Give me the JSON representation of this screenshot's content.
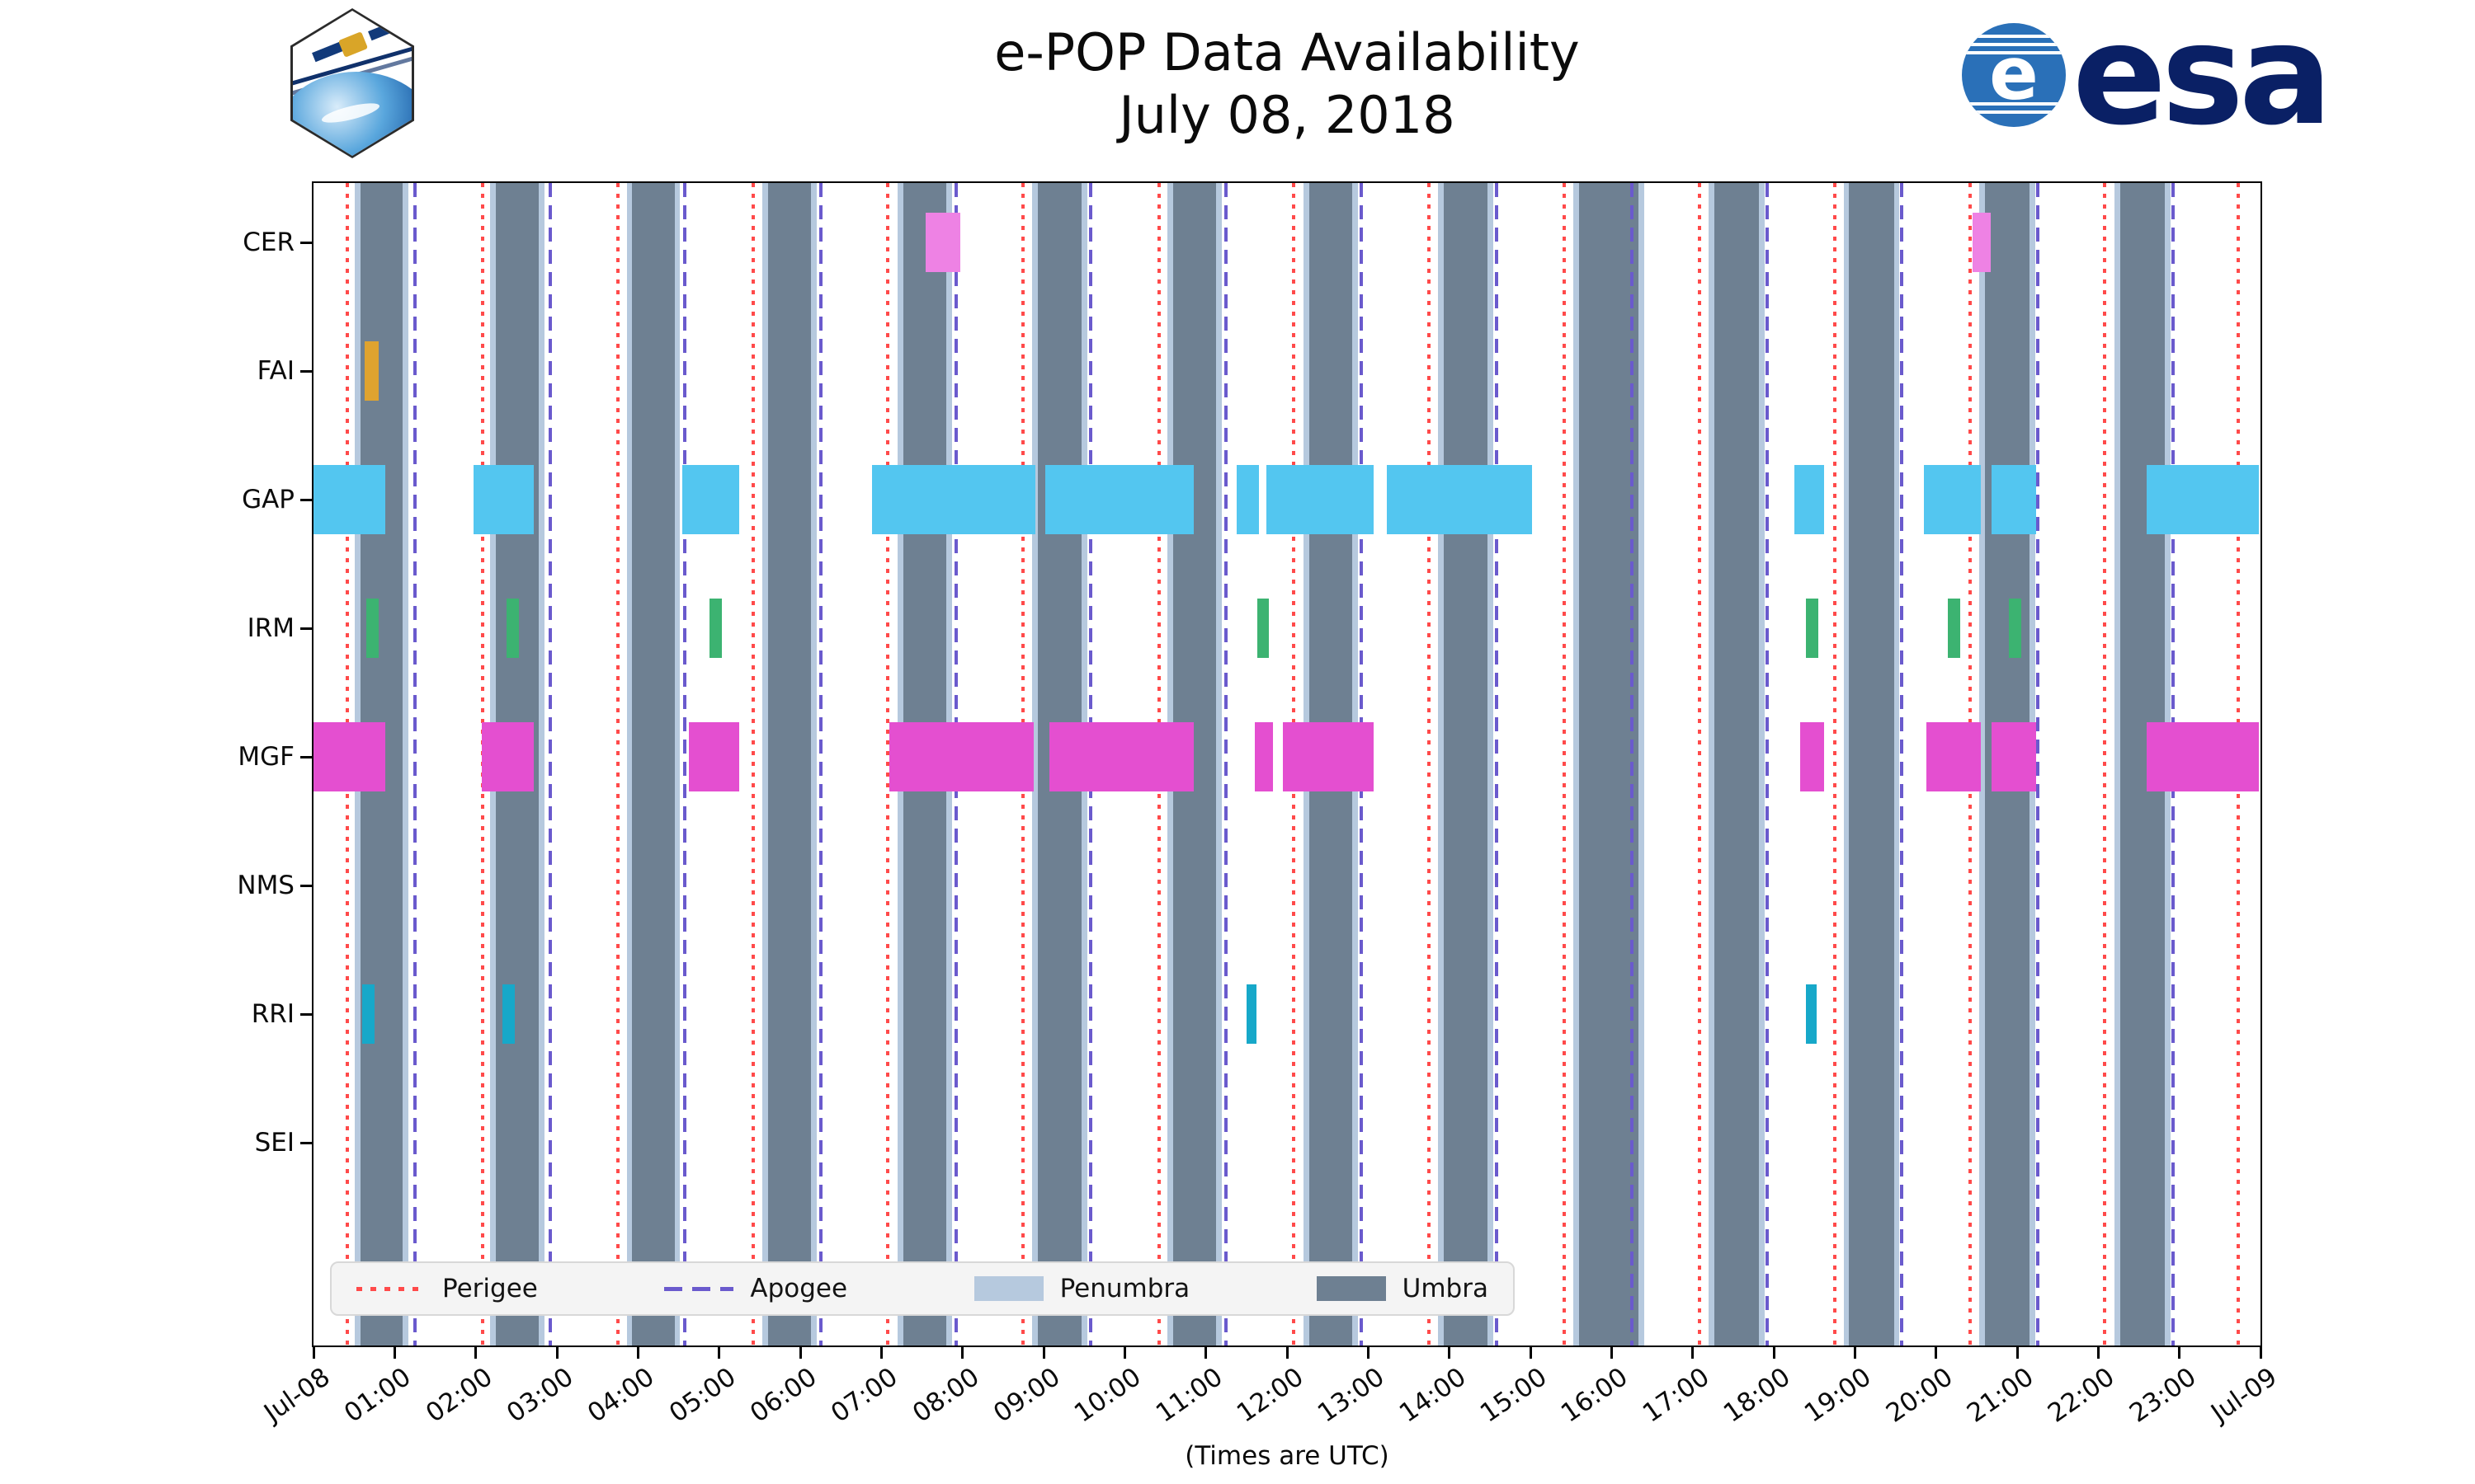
{
  "header": {
    "title_line1": "e-POP Data Availability",
    "title_line2": "July 08, 2018",
    "cassiope_label": "CASSIOPE",
    "esa_label": "esa"
  },
  "axis": {
    "xlabel": "(Times are UTC)",
    "x_tick_labels": [
      "Jul-08",
      "01:00",
      "02:00",
      "03:00",
      "04:00",
      "05:00",
      "06:00",
      "07:00",
      "08:00",
      "09:00",
      "10:00",
      "11:00",
      "12:00",
      "13:00",
      "14:00",
      "15:00",
      "16:00",
      "17:00",
      "18:00",
      "19:00",
      "20:00",
      "21:00",
      "22:00",
      "23:00",
      "Jul-09"
    ],
    "y_labels": [
      "CER",
      "FAI",
      "GAP",
      "IRM",
      "MGF",
      "NMS",
      "RRI",
      "SEI"
    ]
  },
  "legend": {
    "items": [
      {
        "label": "Perigee",
        "style": "dotted",
        "color": "#ff4a4a"
      },
      {
        "label": "Apogee",
        "style": "dashed",
        "color": "#6a5acd"
      },
      {
        "label": "Penumbra",
        "style": "patch",
        "color": "#b6c9de"
      },
      {
        "label": "Umbra",
        "style": "patch",
        "color": "#6e8092"
      }
    ]
  },
  "chart_data": {
    "type": "gantt-timeline",
    "title": "e-POP Data Availability July 08, 2018",
    "x_range_hours": [
      0,
      24
    ],
    "x_tick_interval_hours": 1,
    "instruments": [
      "CER",
      "FAI",
      "GAP",
      "IRM",
      "MGF",
      "NMS",
      "RRI",
      "SEI"
    ],
    "colors": {
      "CER": "#ee82e4",
      "FAI": "#dfa32f",
      "GAP": "#53c6f0",
      "IRM": "#3cb371",
      "MGF": "#e44fd0",
      "NMS": "#888888",
      "RRI": "#17a8c9",
      "SEI": "#888888",
      "umbra": "#6e8092",
      "penumbra": "#b6c9de",
      "perigee": "#ff4a4a",
      "apogee": "#6a5acd"
    },
    "availability_hours": {
      "CER": [
        [
          7.55,
          7.97
        ],
        [
          20.45,
          20.67
        ]
      ],
      "FAI": [
        [
          0.63,
          0.8
        ]
      ],
      "GAP": [
        [
          0.0,
          0.88
        ],
        [
          1.97,
          2.72
        ],
        [
          4.55,
          5.25
        ],
        [
          6.88,
          8.9
        ],
        [
          9.02,
          10.85
        ],
        [
          11.38,
          11.65
        ],
        [
          11.75,
          13.07
        ],
        [
          13.23,
          15.02
        ],
        [
          18.25,
          18.62
        ],
        [
          19.85,
          20.55
        ],
        [
          20.68,
          21.23
        ],
        [
          22.6,
          23.98
        ]
      ],
      "IRM": [
        [
          0.65,
          0.8
        ],
        [
          2.38,
          2.53
        ],
        [
          4.88,
          5.03
        ],
        [
          11.63,
          11.78
        ],
        [
          18.4,
          18.55
        ],
        [
          20.15,
          20.3
        ],
        [
          20.9,
          21.05
        ]
      ],
      "MGF": [
        [
          0.0,
          0.88
        ],
        [
          2.07,
          2.72
        ],
        [
          4.63,
          5.25
        ],
        [
          7.1,
          8.88
        ],
        [
          9.07,
          10.85
        ],
        [
          11.6,
          11.83
        ],
        [
          11.95,
          13.07
        ],
        [
          18.33,
          18.62
        ],
        [
          19.88,
          20.55
        ],
        [
          20.68,
          21.23
        ],
        [
          22.6,
          23.98
        ]
      ],
      "NMS": [],
      "RRI": [
        [
          0.6,
          0.75
        ],
        [
          2.33,
          2.48
        ],
        [
          11.5,
          11.62
        ],
        [
          18.4,
          18.53
        ]
      ],
      "SEI": []
    },
    "umbra_intervals_hours": [
      [
        0.58,
        1.1
      ],
      [
        2.25,
        2.78
      ],
      [
        3.93,
        4.45
      ],
      [
        5.6,
        6.13
      ],
      [
        7.27,
        7.8
      ],
      [
        8.93,
        9.47
      ],
      [
        10.6,
        11.13
      ],
      [
        12.27,
        12.8
      ],
      [
        13.93,
        14.47
      ],
      [
        15.6,
        16.33
      ],
      [
        17.27,
        17.82
      ],
      [
        18.93,
        19.48
      ],
      [
        20.6,
        21.15
      ],
      [
        22.27,
        22.82
      ]
    ],
    "penumbra_pad_hours": 0.07,
    "perigee_hours": [
      0.42,
      2.08,
      3.75,
      5.42,
      7.08,
      8.75,
      10.42,
      12.08,
      13.75,
      15.42,
      17.08,
      18.75,
      20.42,
      22.08,
      23.73
    ],
    "apogee_hours": [
      1.25,
      2.92,
      4.58,
      6.25,
      7.92,
      9.58,
      11.25,
      12.92,
      14.58,
      16.25,
      17.92,
      19.58,
      21.25,
      22.92
    ]
  }
}
